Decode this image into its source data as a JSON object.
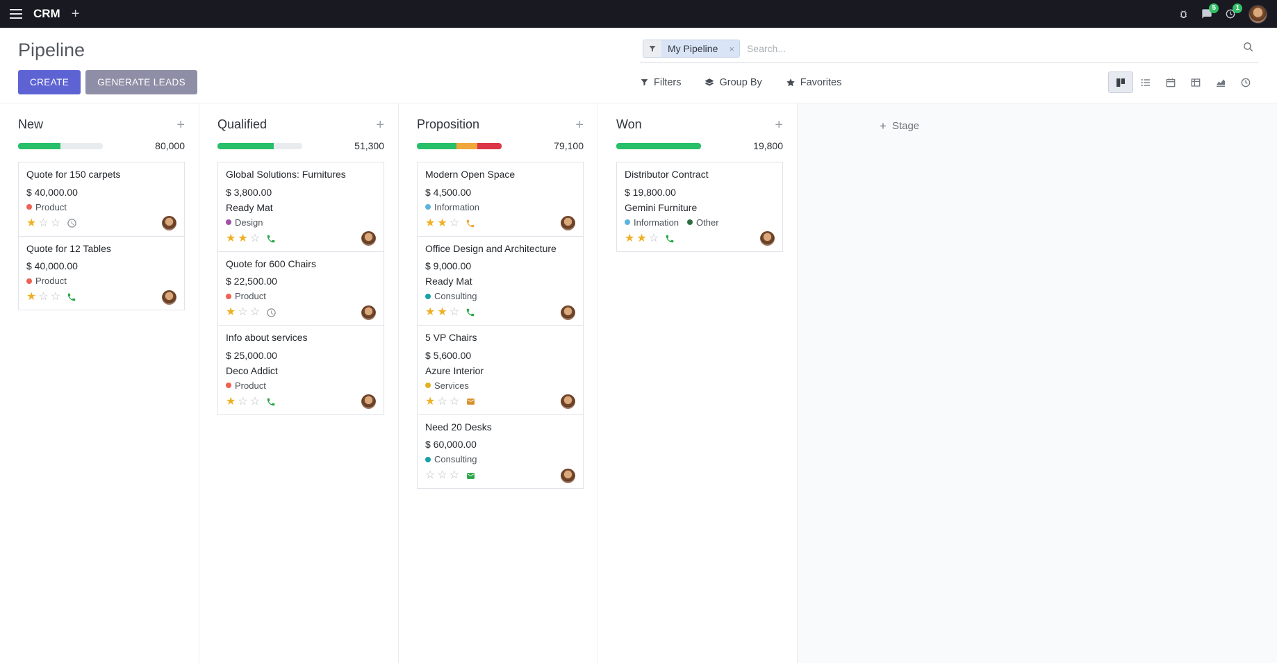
{
  "colors": {
    "primary": "#5d63d3",
    "secondary": "#8e8ea6",
    "success": "#28bf69",
    "warning": "#f0a73c",
    "danger": "#dc3545",
    "star": "#efb023"
  },
  "topbar": {
    "app_name": "CRM",
    "messages_badge": "5",
    "activities_badge": "1"
  },
  "control_panel": {
    "title": "Pipeline",
    "create_button": "CREATE",
    "generate_leads_button": "GENERATE LEADS",
    "filters_button": "Filters",
    "group_by_button": "Group By",
    "favorites_button": "Favorites",
    "search_facet": "My Pipeline",
    "search_placeholder": "Search...",
    "view_switcher": {
      "active": "kanban",
      "views": [
        "kanban",
        "list",
        "calendar",
        "pivot",
        "graph",
        "activity"
      ]
    }
  },
  "icons": {
    "plus": "+",
    "close": "×"
  },
  "board": {
    "add_stage_label": "Stage",
    "columns": [
      {
        "name": "New",
        "counter": "80,000",
        "progress": [
          {
            "color": "#28bf69",
            "pct": 50
          }
        ],
        "cards": [
          {
            "title": "Quote for 150 carpets",
            "amount": "$ 40,000.00",
            "partner": null,
            "tags": [
              {
                "label": "Product",
                "color": "#f06050"
              }
            ],
            "stars": 1,
            "activity": {
              "icon": "clock",
              "color": "#8a9097"
            }
          },
          {
            "title": "Quote for 12 Tables",
            "amount": "$ 40,000.00",
            "partner": null,
            "tags": [
              {
                "label": "Product",
                "color": "#f06050"
              }
            ],
            "stars": 1,
            "activity": {
              "icon": "phone",
              "color": "#28a745"
            }
          }
        ]
      },
      {
        "name": "Qualified",
        "counter": "51,300",
        "progress": [
          {
            "color": "#28bf69",
            "pct": 66
          }
        ],
        "cards": [
          {
            "title": "Global Solutions: Furnitures",
            "amount": "$ 3,800.00",
            "partner": "Ready Mat",
            "tags": [
              {
                "label": "Design",
                "color": "#a34fa8"
              }
            ],
            "stars": 2,
            "activity": {
              "icon": "phone",
              "color": "#28a745"
            }
          },
          {
            "title": "Quote for 600 Chairs",
            "amount": "$ 22,500.00",
            "partner": null,
            "tags": [
              {
                "label": "Product",
                "color": "#f06050"
              }
            ],
            "stars": 1,
            "activity": {
              "icon": "clock",
              "color": "#8a9097"
            }
          },
          {
            "title": "Info about services",
            "amount": "$ 25,000.00",
            "partner": "Deco Addict",
            "tags": [
              {
                "label": "Product",
                "color": "#f06050"
              }
            ],
            "stars": 1,
            "activity": {
              "icon": "phone",
              "color": "#28a745"
            }
          }
        ]
      },
      {
        "name": "Proposition",
        "counter": "79,100",
        "progress": [
          {
            "color": "#28bf69",
            "pct": 47
          },
          {
            "color": "#f0a73c",
            "pct": 24
          },
          {
            "color": "#dc3545",
            "pct": 29
          }
        ],
        "cards": [
          {
            "title": "Modern Open Space",
            "amount": "$ 4,500.00",
            "partner": null,
            "tags": [
              {
                "label": "Information",
                "color": "#5cb3dd"
              }
            ],
            "stars": 2,
            "activity": {
              "icon": "phone",
              "color": "#f0a73c"
            }
          },
          {
            "title": "Office Design and Architecture",
            "amount": "$ 9,000.00",
            "partner": "Ready Mat",
            "tags": [
              {
                "label": "Consulting",
                "color": "#17a2a8"
              }
            ],
            "stars": 2,
            "activity": {
              "icon": "phone",
              "color": "#28a745"
            }
          },
          {
            "title": "5 VP Chairs",
            "amount": "$ 5,600.00",
            "partner": "Azure Interior",
            "tags": [
              {
                "label": "Services",
                "color": "#e0b420"
              }
            ],
            "stars": 1,
            "activity": {
              "icon": "envelope",
              "color": "#d98e2b"
            }
          },
          {
            "title": "Need 20 Desks",
            "amount": "$ 60,000.00",
            "partner": null,
            "tags": [
              {
                "label": "Consulting",
                "color": "#17a2a8"
              }
            ],
            "stars": 0,
            "activity": {
              "icon": "envelope",
              "color": "#28a745"
            }
          }
        ]
      },
      {
        "name": "Won",
        "counter": "19,800",
        "progress": [
          {
            "color": "#28bf69",
            "pct": 100
          }
        ],
        "cards": [
          {
            "title": "Distributor Contract",
            "amount": "$ 19,800.00",
            "partner": "Gemini Furniture",
            "tags": [
              {
                "label": "Information",
                "color": "#5cb3dd"
              },
              {
                "label": "Other",
                "color": "#2d6e41"
              }
            ],
            "stars": 2,
            "activity": {
              "icon": "phone",
              "color": "#28a745"
            }
          }
        ]
      }
    ]
  }
}
